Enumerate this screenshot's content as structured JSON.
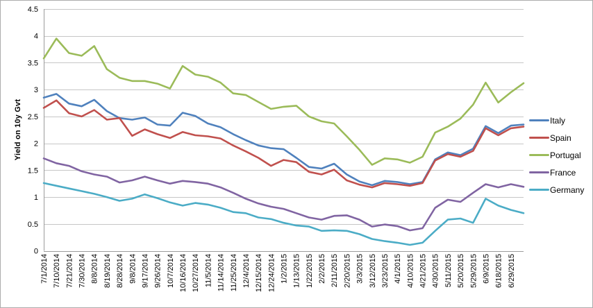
{
  "frame": {
    "background": "#ffffff",
    "border_color": "#acacac",
    "grid_color": "#c6c6c6",
    "axis_color": "#9a9a9a",
    "text_color": "#000000"
  },
  "chart_data": {
    "type": "line",
    "title": "",
    "ylabel": "Yield on 10y Gvt",
    "xlabel": "",
    "ylim": [
      0,
      4.5
    ],
    "ytick_step": 0.5,
    "y_tick_labels": [
      "0",
      "0.5",
      "1",
      "1.5",
      "2",
      "2.5",
      "3",
      "3.5",
      "4",
      "4.5"
    ],
    "x_tick_labels": [
      "7/1/2014",
      "7/10/2014",
      "7/21/2014",
      "7/30/2014",
      "8/8/2014",
      "8/19/2014",
      "8/28/2014",
      "9/8/2014",
      "9/17/2014",
      "9/26/2014",
      "10/7/2014",
      "10/16/2014",
      "10/27/2014",
      "11/5/2014",
      "11/14/2014",
      "11/25/2014",
      "12/4/2014",
      "12/15/2014",
      "12/24/2014",
      "1/2/2015",
      "1/13/2015",
      "1/22/2015",
      "2/2/2015",
      "2/11/2015",
      "2/20/2015",
      "3/3/2015",
      "3/12/2015",
      "3/23/2015",
      "4/1/2015",
      "4/10/2015",
      "4/21/2015",
      "4/30/2015",
      "5/11/2015",
      "5/20/2015",
      "5/29/2015",
      "6/9/2015",
      "6/18/2015",
      "6/29/2015"
    ],
    "grid": "horizontal",
    "legend_position": "right",
    "series": [
      {
        "name": "Italy",
        "color": "#4F81BD",
        "values": [
          2.85,
          2.92,
          2.74,
          2.69,
          2.81,
          2.6,
          2.47,
          2.44,
          2.48,
          2.35,
          2.33,
          2.57,
          2.51,
          2.37,
          2.3,
          2.17,
          2.06,
          1.96,
          1.91,
          1.89,
          1.73,
          1.56,
          1.53,
          1.62,
          1.42,
          1.29,
          1.22,
          1.3,
          1.28,
          1.24,
          1.28,
          1.7,
          1.83,
          1.78,
          1.9,
          2.32,
          2.19,
          2.33,
          2.35
        ]
      },
      {
        "name": "Spain",
        "color": "#C0504D",
        "values": [
          2.66,
          2.8,
          2.56,
          2.5,
          2.62,
          2.44,
          2.47,
          2.14,
          2.26,
          2.17,
          2.1,
          2.21,
          2.15,
          2.13,
          2.09,
          1.96,
          1.85,
          1.73,
          1.58,
          1.69,
          1.65,
          1.47,
          1.42,
          1.51,
          1.31,
          1.23,
          1.18,
          1.26,
          1.24,
          1.21,
          1.26,
          1.68,
          1.8,
          1.75,
          1.86,
          2.28,
          2.15,
          2.28,
          2.31
        ]
      },
      {
        "name": "Portugal",
        "color": "#9BBB59",
        "values": [
          3.58,
          3.95,
          3.68,
          3.63,
          3.81,
          3.38,
          3.22,
          3.16,
          3.16,
          3.11,
          3.02,
          3.44,
          3.28,
          3.24,
          3.13,
          2.93,
          2.9,
          2.77,
          2.64,
          2.68,
          2.7,
          2.5,
          2.41,
          2.37,
          2.13,
          1.88,
          1.6,
          1.72,
          1.7,
          1.64,
          1.75,
          2.2,
          2.31,
          2.46,
          2.72,
          3.13,
          2.76,
          2.95,
          3.12
        ]
      },
      {
        "name": "France",
        "color": "#8064A2",
        "values": [
          1.72,
          1.63,
          1.58,
          1.48,
          1.42,
          1.38,
          1.27,
          1.31,
          1.38,
          1.31,
          1.25,
          1.3,
          1.28,
          1.25,
          1.18,
          1.08,
          0.97,
          0.88,
          0.82,
          0.78,
          0.7,
          0.62,
          0.58,
          0.65,
          0.66,
          0.58,
          0.45,
          0.49,
          0.46,
          0.38,
          0.42,
          0.8,
          0.95,
          0.91,
          1.08,
          1.24,
          1.18,
          1.24,
          1.19
        ]
      },
      {
        "name": "Germany",
        "color": "#4BACC6",
        "values": [
          1.26,
          1.21,
          1.16,
          1.11,
          1.06,
          1.0,
          0.93,
          0.97,
          1.05,
          0.98,
          0.9,
          0.84,
          0.89,
          0.86,
          0.8,
          0.72,
          0.7,
          0.62,
          0.59,
          0.52,
          0.47,
          0.45,
          0.37,
          0.38,
          0.37,
          0.31,
          0.22,
          0.18,
          0.15,
          0.11,
          0.15,
          0.37,
          0.58,
          0.6,
          0.52,
          0.97,
          0.84,
          0.76,
          0.7
        ]
      }
    ]
  }
}
